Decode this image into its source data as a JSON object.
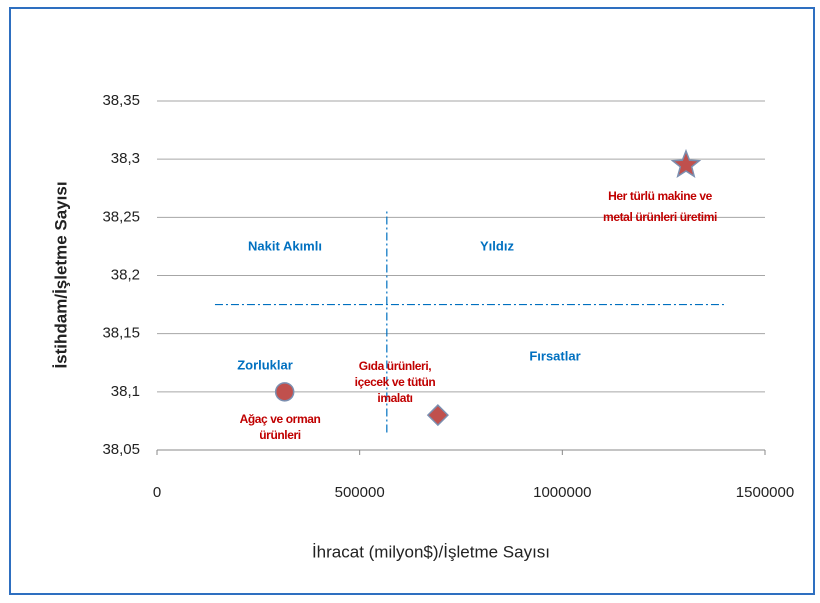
{
  "chart_data": {
    "type": "scatter",
    "x_label": "İhracat (milyon$)/İşletme Sayısı",
    "y_label": "İstihdam/İşletme Sayısı",
    "xlim": [
      0,
      1500000
    ],
    "xticks": [
      0,
      500000,
      1000000,
      1500000
    ],
    "ylim": [
      38.05,
      38.35
    ],
    "yticks": [
      {
        "value": 38.05,
        "label": "38,05"
      },
      {
        "value": 38.1,
        "label": "38,1"
      },
      {
        "value": 38.15,
        "label": "38,15"
      },
      {
        "value": 38.2,
        "label": "38,2"
      },
      {
        "value": 38.25,
        "label": "38,25"
      },
      {
        "value": 38.3,
        "label": "38,3"
      },
      {
        "value": 38.35,
        "label": "38,35"
      }
    ],
    "grid": true,
    "marker_color": "#c0504d",
    "points": [
      {
        "label": [
          "Ağaç ve orman",
          "ürünleri"
        ],
        "marker": "circle",
        "x": 315000,
        "y": 38.1
      },
      {
        "label": [
          "Gıda ürünleri,",
          "içecek ve tütün",
          "imalatı"
        ],
        "marker": "diamond",
        "x": 693000,
        "y": 38.08
      },
      {
        "label": [
          "Her türlü makine ve",
          "metal ürünleri üretimi"
        ],
        "marker": "star",
        "x": 1305000,
        "y": 38.295
      }
    ],
    "quadrant_labels": [
      "Nakit Akımlı",
      "Yıldız",
      "Zorluklar",
      "Fırsatlar"
    ],
    "vertical_divider": {
      "x": 567000,
      "y": [
        38.065,
        38.255
      ]
    },
    "horizontal_divider": {
      "y": 38.175,
      "x": [
        143000,
        1400000
      ]
    }
  }
}
